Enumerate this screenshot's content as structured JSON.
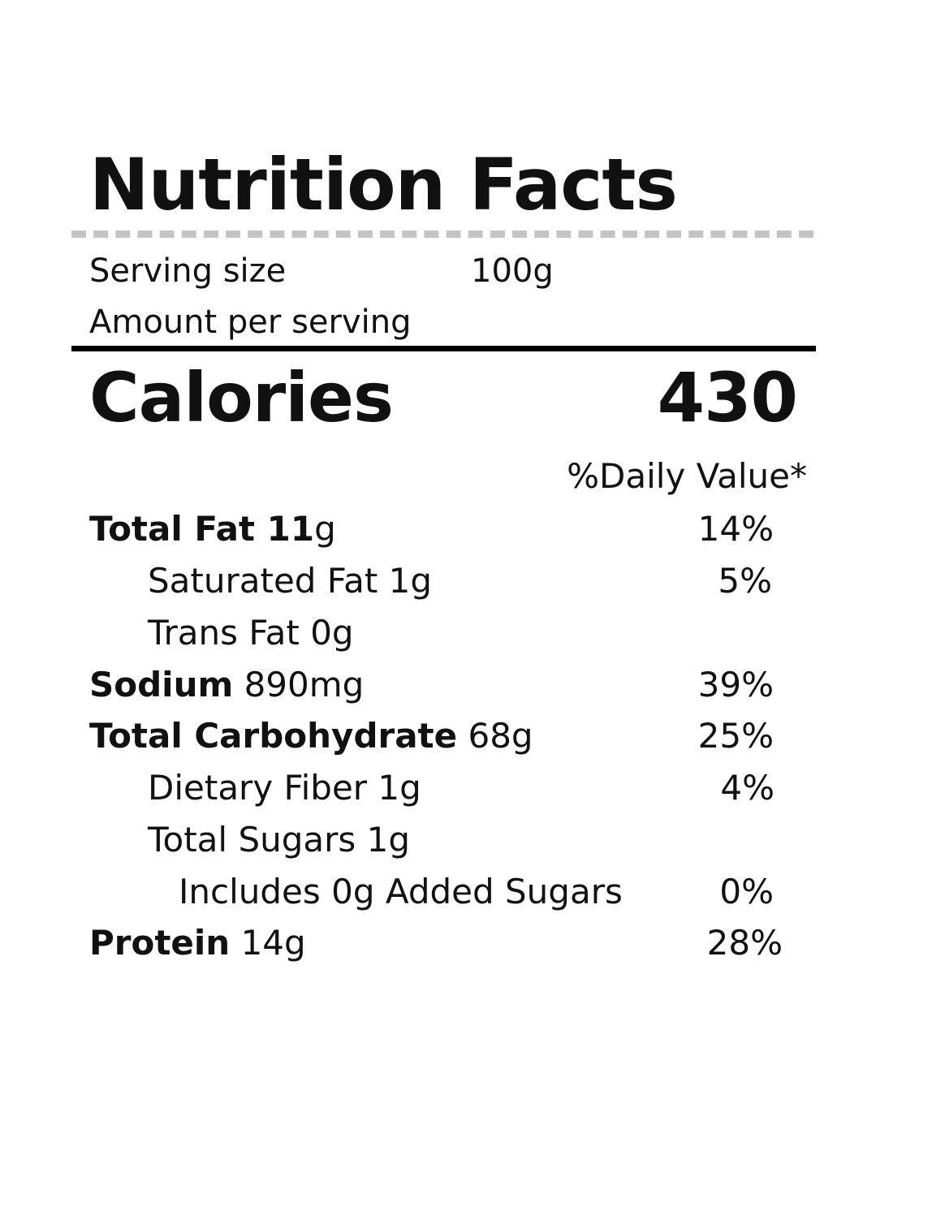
{
  "label": {
    "title": "Nutrition Facts",
    "serving_size_label": "Serving size",
    "serving_size_value": "100g",
    "amount_per_serving": "Amount per serving",
    "calories_label": "Calories",
    "calories_value": "430",
    "daily_value_header": "%Daily Value*"
  },
  "nutrients": {
    "total_fat": {
      "name": "Total Fat 11",
      "amount": "g",
      "dv": "14%"
    },
    "saturated_fat": {
      "name": "Saturated Fat 1g",
      "dv": "5%"
    },
    "trans_fat": {
      "name": "Trans Fat 0g"
    },
    "sodium": {
      "name": "Sodium",
      "amount": " 890mg",
      "dv": "39%"
    },
    "total_carbohydrate": {
      "name": "Total Carbohydrate",
      "amount": " 68g",
      "dv": "25%"
    },
    "dietary_fiber": {
      "name": "Dietary Fiber 1g",
      "dv": "4%"
    },
    "total_sugars": {
      "name": "Total Sugars 1g"
    },
    "added_sugars": {
      "name": "Includes 0g Added Sugars",
      "dv": "0%"
    },
    "protein": {
      "name": "Protein",
      "amount": " 14g",
      "dv": "28%"
    }
  }
}
